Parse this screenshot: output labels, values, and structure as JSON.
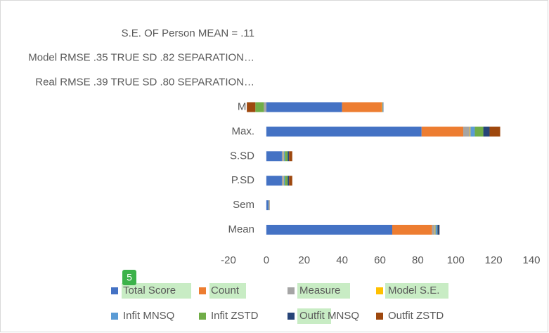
{
  "chart_data": {
    "type": "stacked_barh",
    "categories": [
      "Mean",
      "Sem",
      "P.SD",
      "S.SD",
      "Max.",
      "Min",
      "Real RMSE .39 TRUE SD .80 SEPARATION…",
      "Model RMSE .35 TRUE SD .82 SEPARATION…",
      "S.E. OF Person MEAN = .11"
    ],
    "series": [
      {
        "name": "Total Score",
        "color": "#4472c4",
        "values": [
          66.5,
          1.2,
          8.2,
          8.2,
          82,
          40,
          null,
          null,
          null
        ]
      },
      {
        "name": "Count",
        "color": "#ed7d31",
        "values": [
          21,
          0,
          0,
          0,
          22,
          21,
          null,
          null,
          null
        ]
      },
      {
        "name": "Measure",
        "color": "#a5a5a5",
        "values": [
          1.5,
          0.1,
          1,
          1,
          3.4,
          -1.3,
          null,
          null,
          null
        ]
      },
      {
        "name": "Model S.E.",
        "color": "#ffc000",
        "values": [
          0.3,
          0.05,
          0.1,
          0.1,
          0.4,
          0.3,
          null,
          null,
          null
        ]
      },
      {
        "name": "Infit MNSQ",
        "color": "#5b9bd5",
        "values": [
          1,
          0.1,
          0.5,
          0.5,
          2.3,
          0.3,
          null,
          null,
          null
        ]
      },
      {
        "name": "Infit ZSTD",
        "color": "#70ad47",
        "values": [
          0.1,
          0.1,
          1.5,
          1.5,
          4.5,
          -4.5,
          null,
          null,
          null
        ]
      },
      {
        "name": "Outfit MNSQ",
        "color": "#264478",
        "values": [
          1,
          0.1,
          0.7,
          0.7,
          3.3,
          0.2,
          null,
          null,
          null
        ]
      },
      {
        "name": "Outfit ZSTD",
        "color": "#9e480e",
        "values": [
          0.1,
          0.1,
          1.7,
          1.7,
          5.6,
          -4.5,
          null,
          null,
          null
        ]
      }
    ],
    "xlim": [
      -20,
      140
    ],
    "xticks": [
      -20,
      0,
      20,
      40,
      60,
      80,
      100,
      120,
      140
    ],
    "annotations": [
      "5"
    ]
  }
}
